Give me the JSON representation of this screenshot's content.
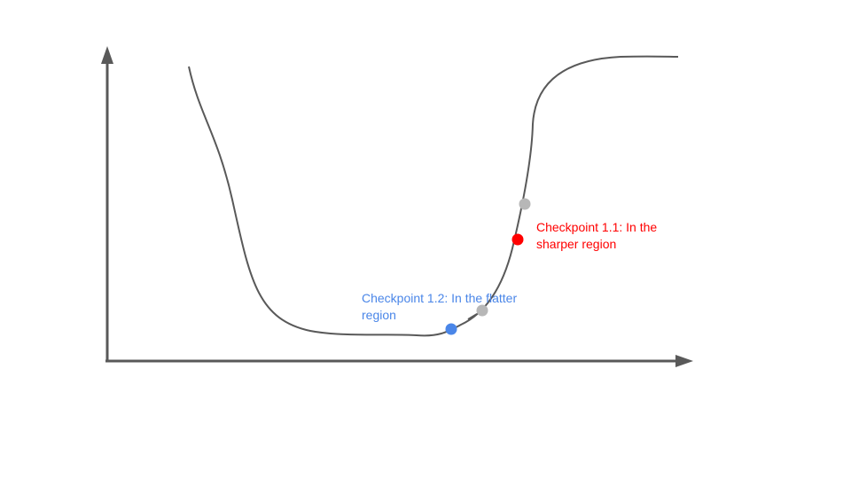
{
  "labels": {
    "checkpoint_sharp_line1": "Checkpoint 1.1: In the",
    "checkpoint_sharp_line2": "sharper region",
    "checkpoint_flat_line1": "Checkpoint 1.2: In the flatter",
    "checkpoint_flat_line2": "region"
  },
  "colors": {
    "axis": "#595959",
    "curve": "#595959",
    "sharp_point": "#ff0000",
    "flat_point": "#4a86e8",
    "neighbor_point": "#b7b7b7"
  }
}
